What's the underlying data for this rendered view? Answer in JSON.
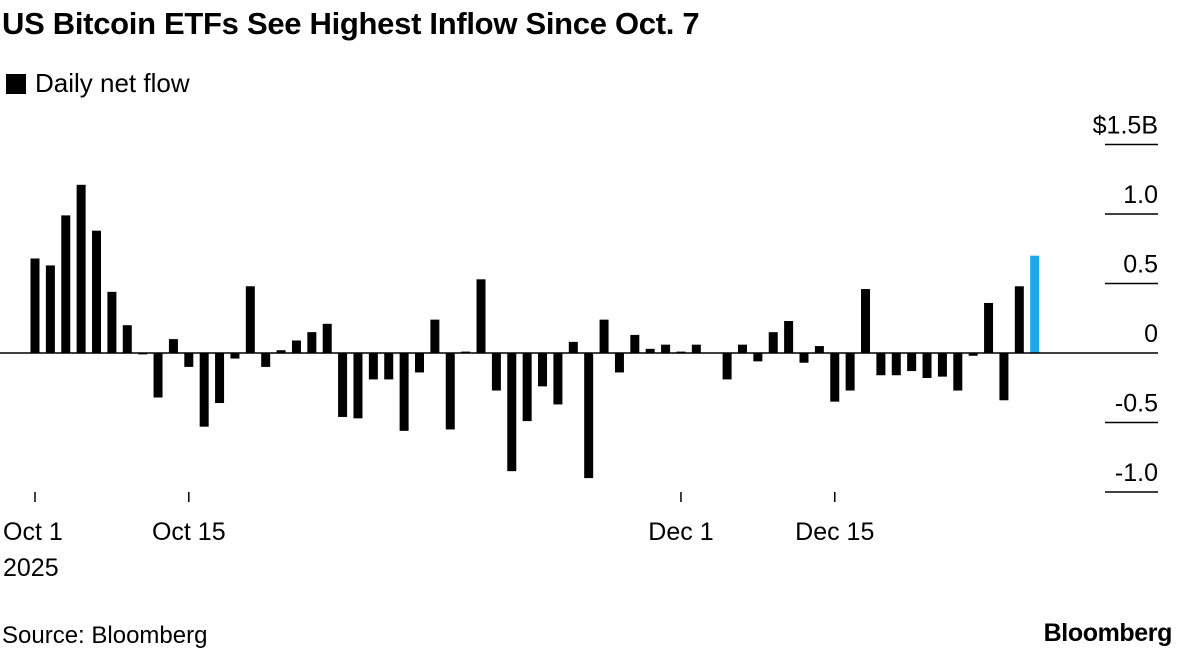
{
  "title": "US Bitcoin ETFs See Highest Inflow Since Oct. 7",
  "legend_label": "Daily net flow",
  "source": "Source: Bloomberg",
  "brand": "Bloomberg",
  "colors": {
    "bar": "#000000",
    "highlight": "#1aa7ec",
    "axis": "#000000"
  },
  "chart_data": {
    "type": "bar",
    "title": "US Bitcoin ETFs See Highest Inflow Since Oct. 7",
    "ylabel": "",
    "xlabel": "",
    "ylim": [
      -1.2,
      1.5
    ],
    "grid": false,
    "legend_position": "top-left",
    "y_ticks": [
      {
        "value": 1.5,
        "label": "$1.5B"
      },
      {
        "value": 1.0,
        "label": "1.0"
      },
      {
        "value": 0.5,
        "label": "0.5"
      },
      {
        "value": 0,
        "label": "0"
      },
      {
        "value": -0.5,
        "label": "-0.5"
      },
      {
        "value": -1.0,
        "label": "-1.0"
      }
    ],
    "x_ticks": [
      {
        "index": 0,
        "label": "Oct 1",
        "sublabel": "2025"
      },
      {
        "index": 10,
        "label": "Oct 15",
        "sublabel": ""
      },
      {
        "index": 42,
        "label": "Dec 1",
        "sublabel": ""
      },
      {
        "index": 52,
        "label": "Dec 15",
        "sublabel": ""
      }
    ],
    "series": [
      {
        "name": "Daily net flow",
        "values": [
          0.68,
          0.63,
          0.99,
          1.21,
          0.88,
          0.44,
          0.2,
          -0.01,
          -0.32,
          0.1,
          -0.1,
          -0.53,
          -0.36,
          -0.04,
          0.48,
          -0.1,
          0.02,
          0.09,
          0.15,
          0.21,
          -0.46,
          -0.47,
          -0.19,
          -0.19,
          -0.56,
          -0.14,
          0.24,
          -0.55,
          0.01,
          0.53,
          -0.27,
          -0.85,
          -0.49,
          -0.24,
          -0.37,
          0.08,
          -0.9,
          0.24,
          -0.14,
          0.13,
          0.03,
          0.06,
          0.01,
          0.06,
          0.0,
          -0.19,
          0.06,
          -0.06,
          0.15,
          0.23,
          -0.07,
          0.05,
          -0.35,
          -0.27,
          0.46,
          -0.16,
          -0.16,
          -0.13,
          -0.18,
          -0.17,
          -0.27,
          -0.02,
          0.36,
          -0.34,
          0.48,
          0.7
        ]
      }
    ],
    "highlight_index": 65
  }
}
